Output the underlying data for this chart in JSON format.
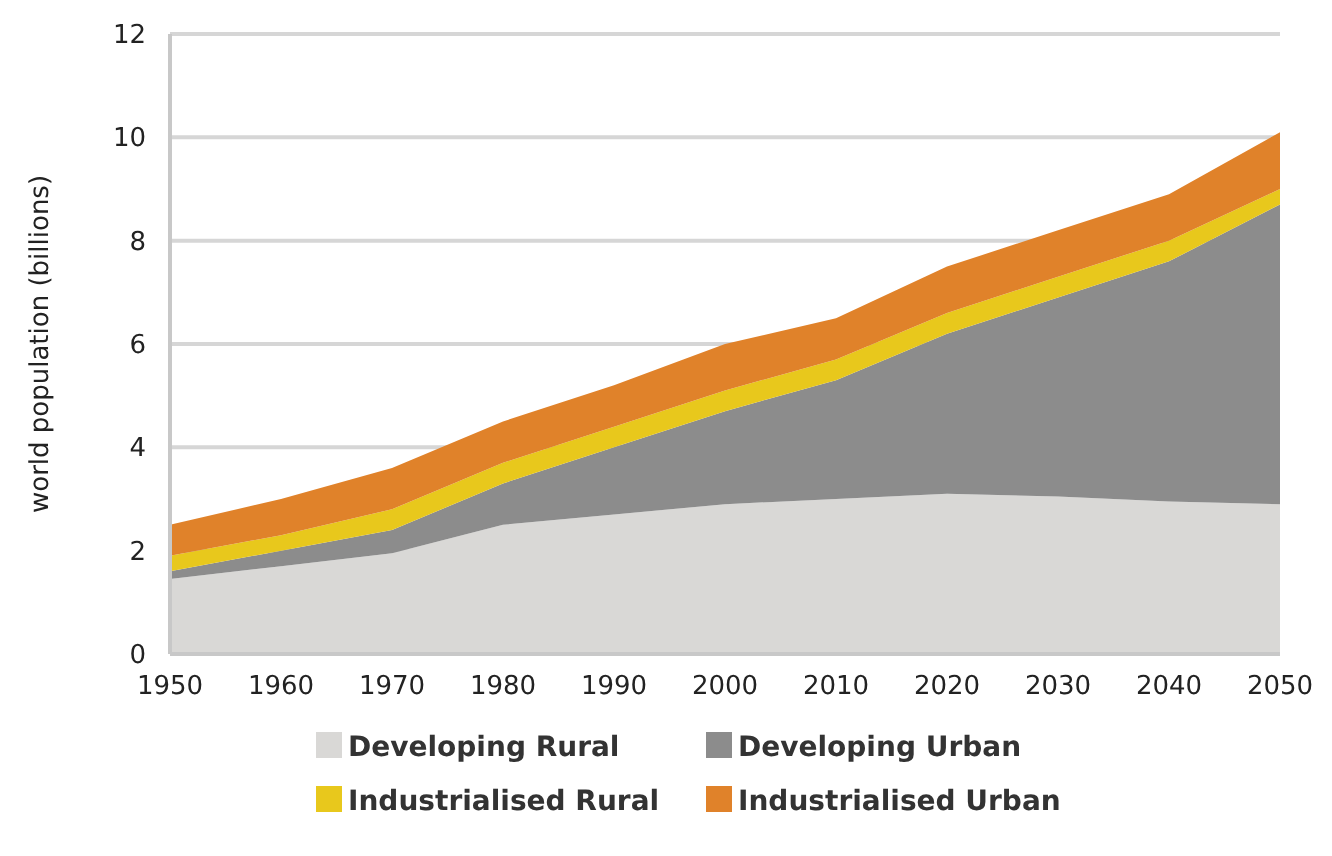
{
  "chart_data": {
    "type": "area",
    "stacked": true,
    "ylabel": "world population (billions)",
    "x": [
      1950,
      1960,
      1970,
      1980,
      1990,
      2000,
      2010,
      2020,
      2030,
      2040,
      2050
    ],
    "series": [
      {
        "name": "Developing Rural",
        "color": "#d9d8d6",
        "values": [
          1.45,
          1.7,
          1.95,
          2.5,
          2.7,
          2.9,
          3.0,
          3.1,
          3.05,
          2.95,
          2.9
        ]
      },
      {
        "name": "Developing Urban",
        "color": "#8c8c8c",
        "values": [
          0.15,
          0.3,
          0.45,
          0.8,
          1.3,
          1.8,
          2.3,
          3.1,
          3.85,
          4.65,
          5.8
        ]
      },
      {
        "name": "Industrialised Rural",
        "color": "#e8c81c",
        "values": [
          0.3,
          0.3,
          0.4,
          0.4,
          0.4,
          0.4,
          0.4,
          0.4,
          0.4,
          0.4,
          0.3
        ]
      },
      {
        "name": "Industrialised Urban",
        "color": "#e0822a",
        "values": [
          0.6,
          0.7,
          0.8,
          0.8,
          0.8,
          0.9,
          0.8,
          0.9,
          0.9,
          0.9,
          1.1
        ]
      }
    ],
    "xlim": [
      1950,
      2050
    ],
    "xticks": [
      1950,
      1960,
      1970,
      1980,
      1990,
      2000,
      2010,
      2020,
      2030,
      2040,
      2050
    ],
    "ylim": [
      0,
      12
    ],
    "yticks": [
      0,
      2,
      4,
      6,
      8,
      10,
      12
    ],
    "grid": "y",
    "legend": "bottom"
  }
}
